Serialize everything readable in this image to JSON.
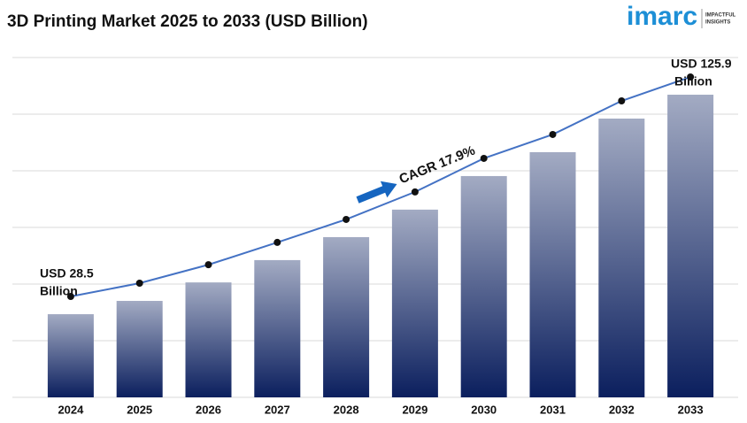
{
  "chart_data": {
    "type": "bar",
    "title": "3D Printing Market 2025 to 2033 (USD Billion)",
    "categories": [
      "2024",
      "2025",
      "2026",
      "2027",
      "2028",
      "2029",
      "2030",
      "2031",
      "2032",
      "2033"
    ],
    "values": [
      28.5,
      34.4,
      42.6,
      52.5,
      62.7,
      74.9,
      89.8,
      100.4,
      115.3,
      125.9
    ],
    "color": "#0b1f5e",
    "line_color": "#4472c4",
    "ylim": [
      -8.4,
      142.4
    ],
    "grid": true,
    "start_annotation": [
      "USD 28.5",
      "Billion"
    ],
    "end_annotation": [
      "USD 125.9",
      "Billion"
    ],
    "cagr_annotation": "CAGR 17.9%"
  },
  "logo": {
    "name": "imarc",
    "tagline": [
      "IMPACTFUL",
      "INSIGHTS"
    ]
  }
}
